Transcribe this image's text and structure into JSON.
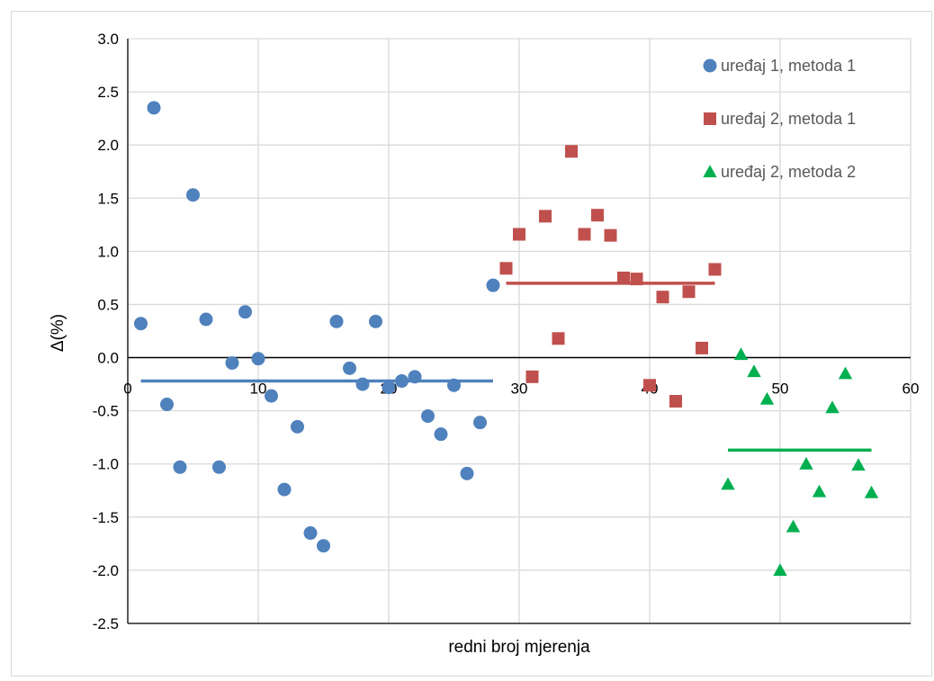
{
  "chart_data": {
    "type": "scatter",
    "title": "",
    "xlabel": "redni broj mjerenja",
    "ylabel": "Δ(%)",
    "xlim": [
      0,
      60
    ],
    "ylim": [
      -2.5,
      3.0
    ],
    "x_ticks": [
      "0",
      "10",
      "20",
      "30",
      "40",
      "50",
      "60"
    ],
    "y_ticks": [
      "3.0",
      "2.5",
      "2.0",
      "1.5",
      "1.0",
      "0.5",
      "0.0",
      "-0.5",
      "-1.0",
      "-1.5",
      "-2.0",
      "-2.5"
    ],
    "grid": true,
    "legend_position": "top-right",
    "series": [
      {
        "name": "uređaj 1, metoda 1",
        "marker": "circle",
        "color": "#4f81bd",
        "points": [
          [
            1,
            0.32
          ],
          [
            2,
            2.35
          ],
          [
            3,
            -0.44
          ],
          [
            4,
            -1.03
          ],
          [
            5,
            1.53
          ],
          [
            6,
            0.36
          ],
          [
            7,
            -1.03
          ],
          [
            8,
            -0.05
          ],
          [
            9,
            0.43
          ],
          [
            10,
            -0.01
          ],
          [
            11,
            -0.36
          ],
          [
            12,
            -1.24
          ],
          [
            13,
            -0.65
          ],
          [
            14,
            -1.65
          ],
          [
            15,
            -1.77
          ],
          [
            16,
            0.34
          ],
          [
            17,
            -0.1
          ],
          [
            18,
            -0.25
          ],
          [
            19,
            0.34
          ],
          [
            20,
            -0.28
          ],
          [
            21,
            -0.22
          ],
          [
            22,
            -0.18
          ],
          [
            23,
            -0.55
          ],
          [
            24,
            -0.72
          ],
          [
            25,
            -0.26
          ],
          [
            26,
            -1.09
          ],
          [
            27,
            -0.61
          ],
          [
            28,
            0.68
          ]
        ],
        "mean": {
          "value": -0.22,
          "x_range": [
            1,
            28
          ]
        }
      },
      {
        "name": "uređaj 2, metoda 1",
        "marker": "square",
        "color": "#c0504d",
        "points": [
          [
            29,
            0.84
          ],
          [
            30,
            1.16
          ],
          [
            31,
            -0.18
          ],
          [
            32,
            1.33
          ],
          [
            33,
            0.18
          ],
          [
            34,
            1.94
          ],
          [
            35,
            1.16
          ],
          [
            36,
            1.34
          ],
          [
            37,
            1.15
          ],
          [
            38,
            0.75
          ],
          [
            39,
            0.74
          ],
          [
            40,
            -0.26
          ],
          [
            41,
            0.57
          ],
          [
            42,
            -0.41
          ],
          [
            43,
            0.62
          ],
          [
            44,
            0.09
          ],
          [
            45,
            0.83
          ]
        ],
        "mean": {
          "value": 0.7,
          "x_range": [
            29,
            45
          ]
        }
      },
      {
        "name": "uređaj 2, metoda 2",
        "marker": "triangle",
        "color": "#00b050",
        "points": [
          [
            46,
            -1.19
          ],
          [
            47,
            0.03
          ],
          [
            48,
            -0.13
          ],
          [
            49,
            -0.39
          ],
          [
            50,
            -2.0
          ],
          [
            51,
            -1.59
          ],
          [
            52,
            -1.0
          ],
          [
            53,
            -1.26
          ],
          [
            54,
            -0.47
          ],
          [
            55,
            -0.15
          ],
          [
            56,
            -1.01
          ],
          [
            57,
            -1.27
          ]
        ],
        "mean": {
          "value": -0.87,
          "x_range": [
            46,
            57
          ]
        }
      }
    ]
  }
}
